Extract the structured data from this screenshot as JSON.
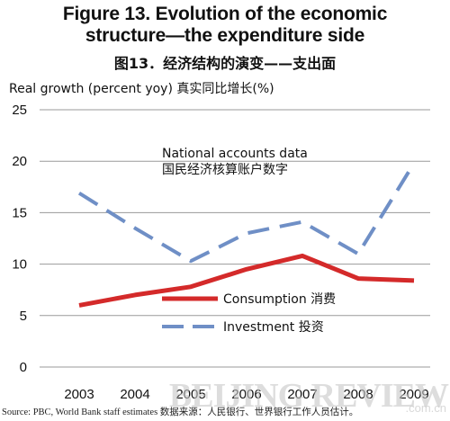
{
  "title_en_line1": "Figure 13. Evolution of the economic",
  "title_en_line2": "structure—the expenditure side",
  "title_zh": "图13．经济结构的演变——支出面",
  "source": "Source: PBC, World Bank staff estimates     数据来源：人民银行、世界银行工作人员估计。",
  "watermark": "BEIJING REVIEW",
  "watermark_small": ".com.cn",
  "chart_data": {
    "type": "line",
    "ylabel": "Real growth (percent yoy)  真实同比增长(%)",
    "ylim": [
      0,
      25
    ],
    "yticks": [
      "0",
      "5",
      "10",
      "15",
      "20",
      "25"
    ],
    "x": [
      "2003",
      "2004",
      "2005",
      "2006",
      "2007",
      "2008",
      "2009"
    ],
    "annotation_line1": "National accounts data",
    "annotation_line2": "国民经济核算账户数字",
    "series": [
      {
        "name": "Consumption  消费",
        "style": "solid",
        "color": "#d42a2a",
        "values": [
          6.0,
          7.0,
          7.8,
          9.5,
          10.8,
          8.6,
          8.4
        ]
      },
      {
        "name": "Investment  投资",
        "style": "dashed",
        "color": "#6f8fc6",
        "values": [
          16.9,
          13.5,
          10.3,
          13.0,
          14.1,
          11.0,
          19.8
        ]
      }
    ]
  }
}
